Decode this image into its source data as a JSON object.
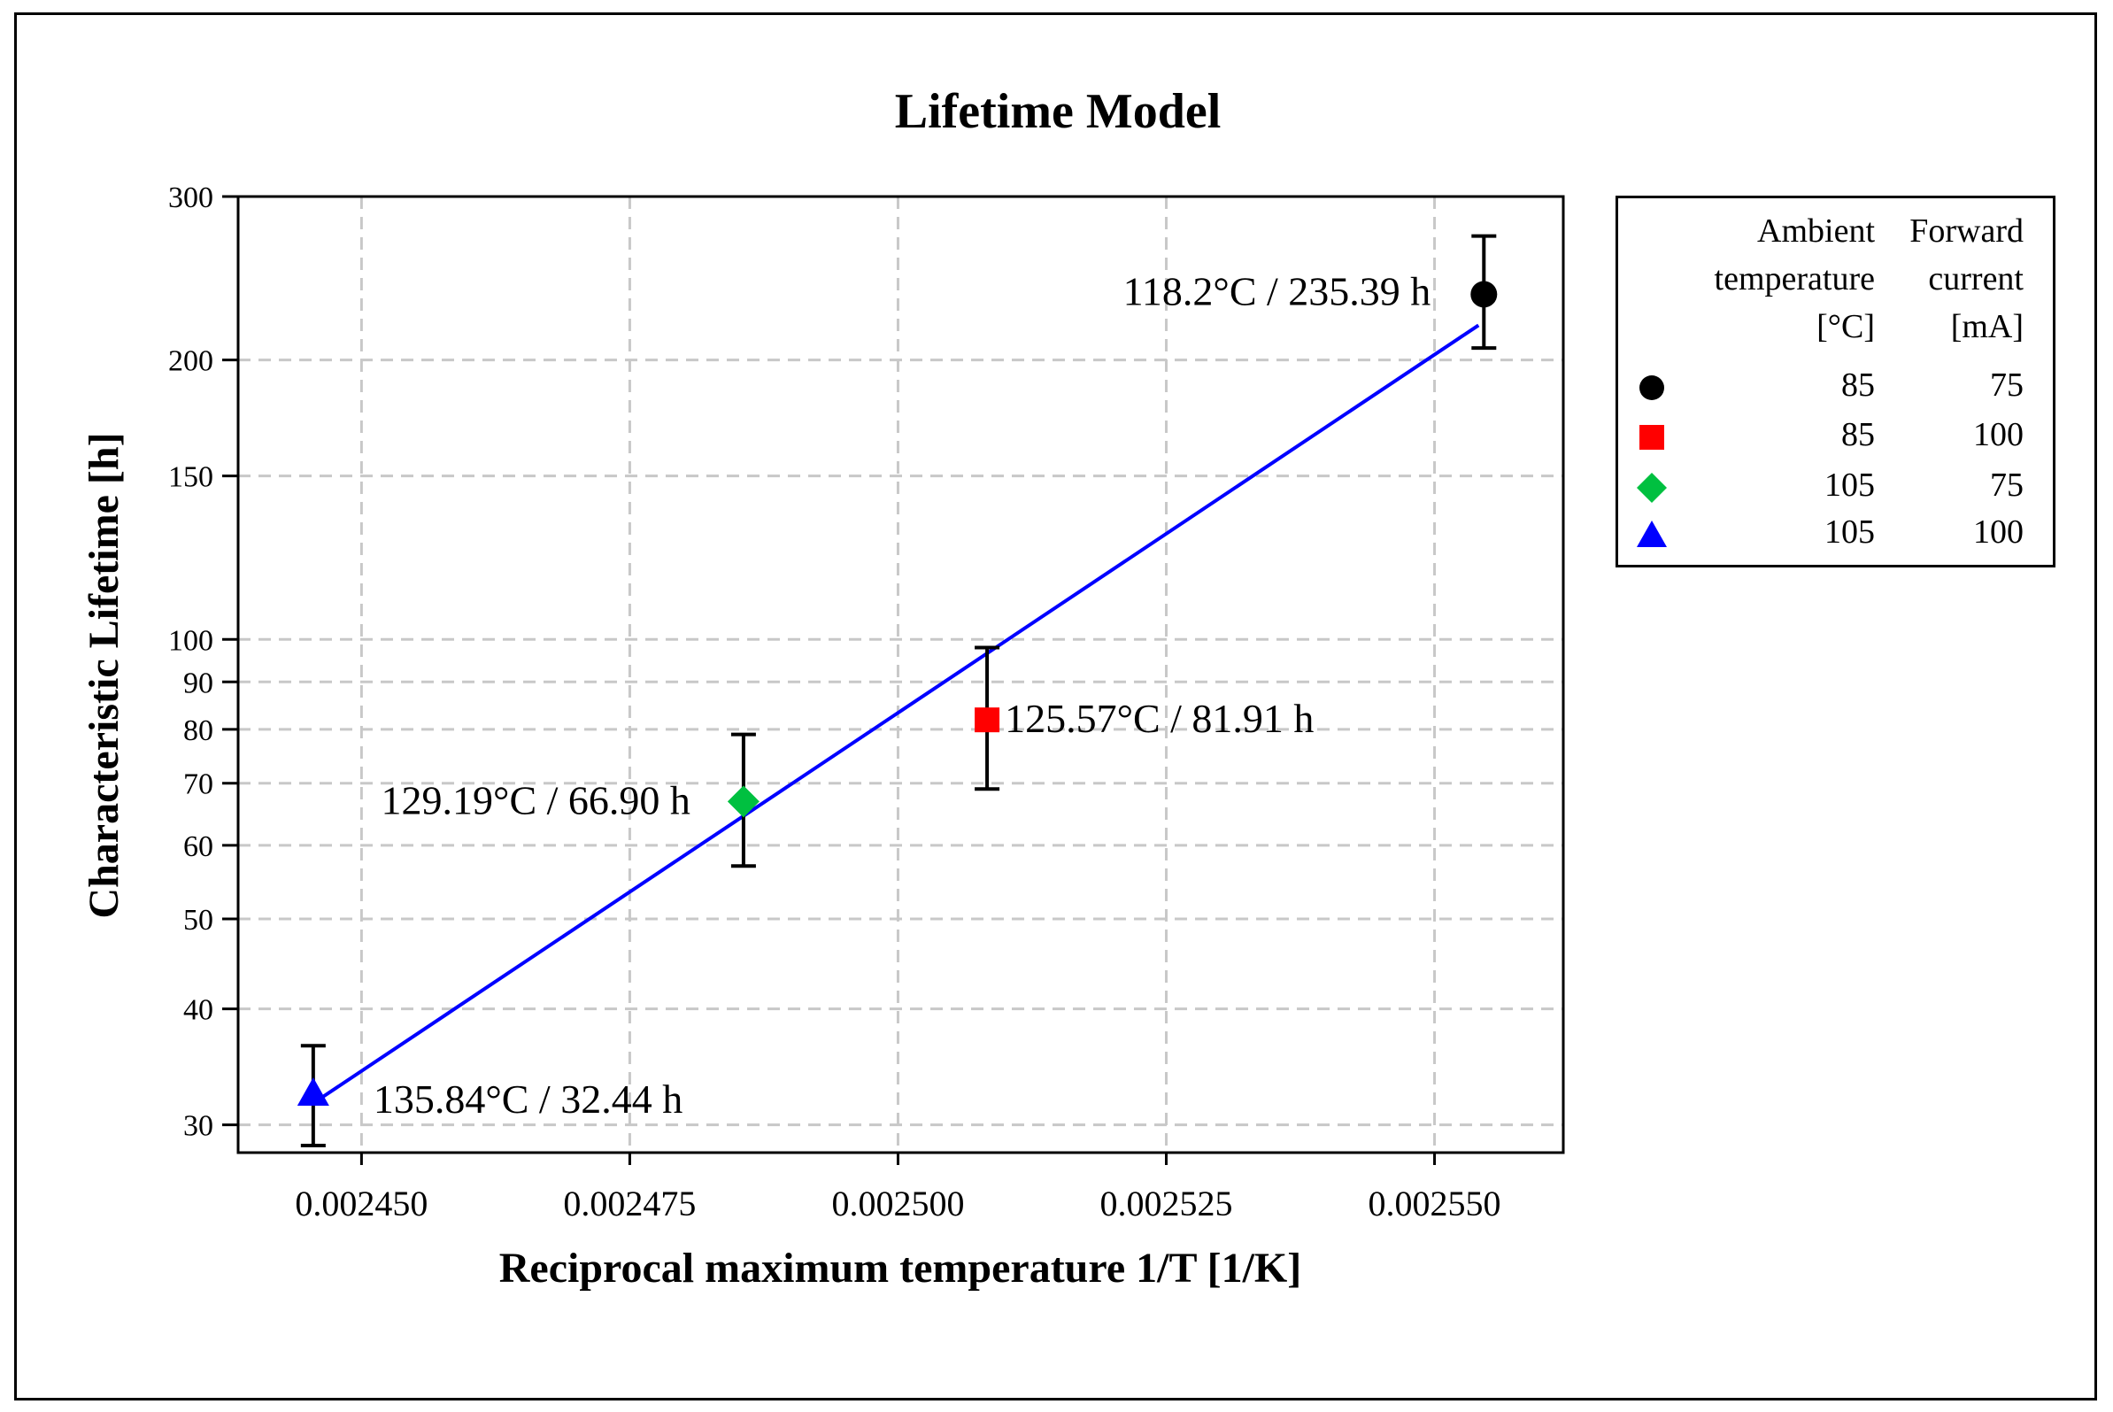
{
  "chart_data": {
    "type": "scatter",
    "title": "Lifetime Model",
    "xlabel": "Reciprocal maximum temperature 1/T [1/K]",
    "ylabel": "Characteristic Lifetime [h]",
    "x_scale": "linear",
    "y_scale": "log",
    "xlim": [
      0.0024385,
      0.002562
    ],
    "ylim": [
      28,
      300
    ],
    "x_ticks": [
      0.00245,
      0.002475,
      0.0025,
      0.002525,
      0.00255
    ],
    "x_tick_labels": [
      "0.002450",
      "0.002475",
      "0.002500",
      "0.002525",
      "0.002550"
    ],
    "y_ticks": [
      30,
      40,
      50,
      60,
      70,
      80,
      90,
      100,
      150,
      200,
      300
    ],
    "y_tick_labels": [
      "30",
      "40",
      "50",
      "60",
      "70",
      "80",
      "90",
      "100",
      "150",
      "200",
      "300"
    ],
    "grid": true,
    "points": [
      {
        "x": 0.0025546,
        "y": 235.39,
        "err_low": 206,
        "err_high": 272,
        "label": "118.2°C / 235.39 h",
        "marker": "circle",
        "color": "#000000",
        "label_side": "left"
      },
      {
        "x": 0.0025083,
        "y": 81.91,
        "err_low": 69,
        "err_high": 98,
        "label": "125.57°C / 81.91 h",
        "marker": "square",
        "color": "#ff0000",
        "label_side": "right"
      },
      {
        "x": 0.0024856,
        "y": 66.9,
        "err_low": 57,
        "err_high": 79,
        "label": "129.19°C / 66.90 h",
        "marker": "diamond",
        "color": "#00c040",
        "label_side": "left"
      },
      {
        "x": 0.0024455,
        "y": 32.44,
        "err_low": 28.5,
        "err_high": 36.5,
        "label": "135.84°C / 32.44 h",
        "marker": "triangle",
        "color": "#0000ff",
        "label_side": "right"
      }
    ],
    "fit_line": {
      "x": [
        0.0024463,
        0.0025541
      ],
      "y": [
        32.1,
        218
      ],
      "color": "#0000ff"
    },
    "legend": {
      "position": "right",
      "header_temp": [
        "Ambient",
        "temperature",
        "[°C]"
      ],
      "header_current": [
        "Forward",
        "current",
        "[mA]"
      ],
      "entries": [
        {
          "marker": "circle",
          "color": "#000000",
          "temp": "85",
          "current": "75"
        },
        {
          "marker": "square",
          "color": "#ff0000",
          "temp": "85",
          "current": "100"
        },
        {
          "marker": "diamond",
          "color": "#00c040",
          "temp": "105",
          "current": "75"
        },
        {
          "marker": "triangle",
          "color": "#0000ff",
          "temp": "105",
          "current": "100"
        }
      ]
    }
  }
}
